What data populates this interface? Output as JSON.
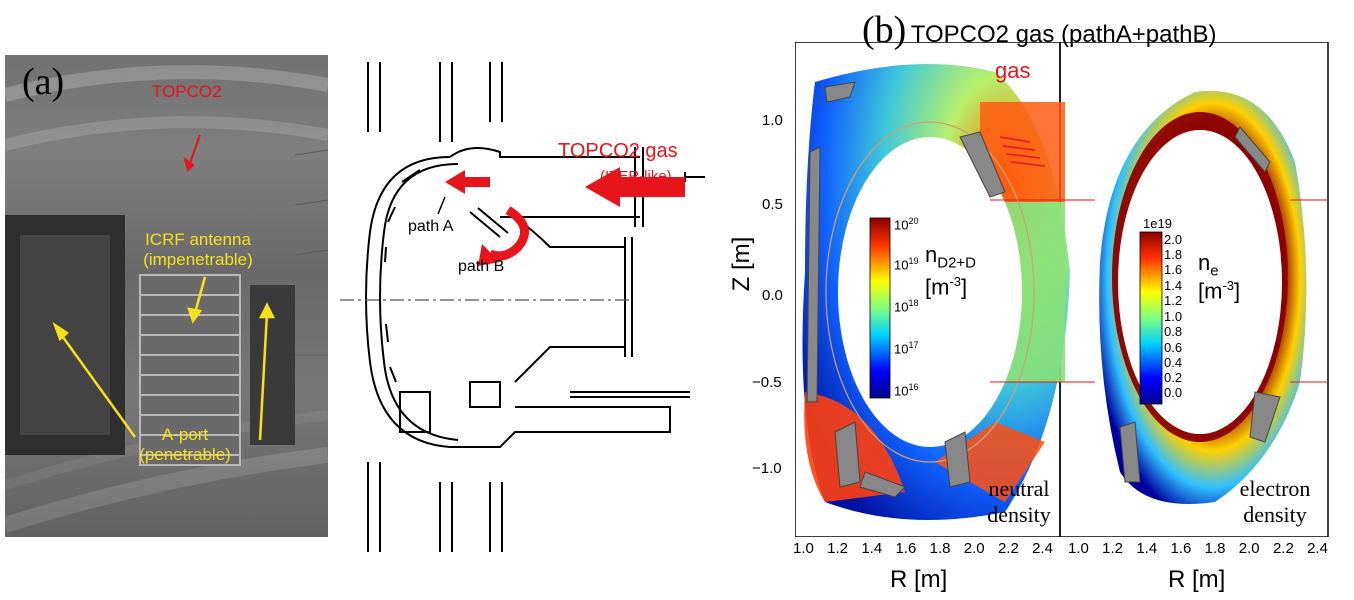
{
  "panel_a": {
    "label": "(a)",
    "photo": {
      "topco2": "TOPCO2",
      "icrf_line1": "ICRF antenna",
      "icrf_line2": "(impenetrable)",
      "aport_line1": "A-port",
      "aport_line2": "(penetrable)"
    },
    "schematic": {
      "gas_title": "TOPCO2 gas",
      "gas_sub": "(ITER-like)",
      "path_a": "path A",
      "path_b": "path B"
    }
  },
  "panel_b": {
    "label": "(b)",
    "title": "TOPCO2 gas (pathA+pathB)",
    "ylabel": "Z [m]",
    "xlabel": "R [m]",
    "yticks": [
      "1.0",
      "0.5",
      "0.0",
      "−0.5",
      "−1.0"
    ],
    "xticks": [
      "1.0",
      "1.2",
      "1.4",
      "1.6",
      "1.8",
      "2.0",
      "2.2",
      "2.4"
    ],
    "left_plot": {
      "gas_label": "gas",
      "cb_ticks_mantissa": [
        "10",
        "10",
        "10",
        "10",
        "10"
      ],
      "cb_ticks_exp": [
        "20",
        "19",
        "18",
        "17",
        "16"
      ],
      "quantity_main": "n",
      "quantity_sub": "D2+D",
      "unit_main": "[m",
      "unit_exp": "-3",
      "unit_close": "]",
      "caption_line1": "neutral",
      "caption_line2": "density"
    },
    "right_plot": {
      "cb_scale": "1e19",
      "cb_ticks": [
        "2.0",
        "1.8",
        "1.6",
        "1.4",
        "1.2",
        "1.0",
        "0.8",
        "0.6",
        "0.4",
        "0.2",
        "0.0"
      ],
      "quantity_main": "n",
      "quantity_sub": "e",
      "unit_main": "[m",
      "unit_exp": "-3",
      "unit_close": "]",
      "caption_line1": "electron",
      "caption_line2": "density"
    }
  },
  "colors": {
    "annotation_yellow": "#f5e11a",
    "annotation_red": "#e8141c",
    "cmap_low": "#00008b",
    "cmap_high": "#8b0000"
  }
}
